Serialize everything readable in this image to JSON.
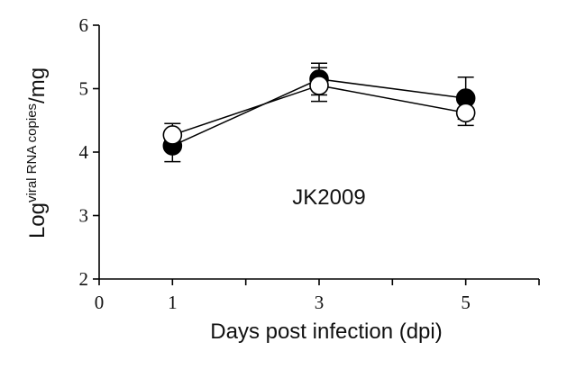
{
  "chart_data": {
    "type": "line",
    "title": "",
    "annotation": "JK2009",
    "xlabel": "Days post infection (dpi)",
    "ylabel": {
      "main": "Log",
      "superscript": "viral RNA copies",
      "suffix": "/mg"
    },
    "xlim": [
      0,
      6
    ],
    "ylim": [
      2,
      6
    ],
    "x_ticks": [
      0,
      1,
      3,
      5
    ],
    "x_tick_labels": [
      "0",
      "1",
      "3",
      "5"
    ],
    "x_minor_ticks": [
      2,
      4,
      6
    ],
    "y_ticks": [
      2,
      3,
      4,
      5,
      6
    ],
    "y_tick_labels": [
      "2",
      "3",
      "4",
      "5",
      "6"
    ],
    "grid": false,
    "series": [
      {
        "marker": "filled-circle",
        "color": "#000000",
        "x": [
          1,
          3,
          5
        ],
        "y": [
          4.1,
          5.15,
          4.85
        ],
        "error_upper": [
          4.15,
          5.4,
          5.18
        ],
        "error_lower": [
          3.85,
          4.9,
          4.52
        ]
      },
      {
        "marker": "open-circle",
        "color": "#000000",
        "x": [
          1,
          3,
          5
        ],
        "y": [
          4.27,
          5.05,
          4.62
        ],
        "error_upper": [
          4.45,
          5.33,
          4.85
        ],
        "error_lower": [
          4.1,
          4.8,
          4.42
        ]
      }
    ]
  }
}
